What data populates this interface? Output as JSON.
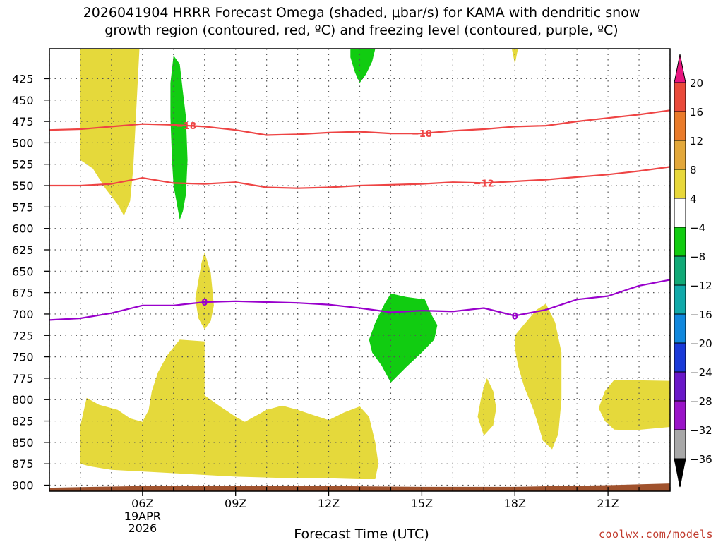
{
  "chart_data": {
    "type": "cross-section",
    "title_lines": [
      "2026041904 HRRR Forecast Omega (shaded, μbar/s) for KAMA with dendritic snow",
      "growth region (contoured, red, ºC) and freezing level (contoured, purple, ºC)"
    ],
    "xlabel": "Forecast Time (UTC)",
    "x_range_hours": [
      3.0,
      23.0
    ],
    "x_ticks": [
      {
        "hour": 6,
        "label": "06Z",
        "sub": [
          "19APR",
          "2026"
        ]
      },
      {
        "hour": 9,
        "label": "09Z"
      },
      {
        "hour": 12,
        "label": "12Z"
      },
      {
        "hour": 15,
        "label": "15Z"
      },
      {
        "hour": 18,
        "label": "18Z"
      },
      {
        "hour": 21,
        "label": "21Z"
      }
    ],
    "y_range_hpa": [
      907,
      390
    ],
    "y_ticks": [
      425,
      450,
      475,
      500,
      525,
      550,
      575,
      600,
      625,
      650,
      675,
      700,
      725,
      750,
      775,
      800,
      825,
      850,
      875,
      900
    ],
    "grid": "dotted",
    "colorbar": {
      "labels": [
        "20",
        "16",
        "12",
        "8",
        "4",
        "−4",
        "−8",
        "−12",
        "−16",
        "−20",
        "−24",
        "−28",
        "−32",
        "−36"
      ],
      "colors": [
        "#e8157f",
        "#ea4a3a",
        "#ea7b2a",
        "#e3a83a",
        "#e8d83a",
        "#ffffff",
        "#11cc11",
        "#11aa77",
        "#11aaaa",
        "#1188dd",
        "#1a3ad8",
        "#6a18c8",
        "#9a14c8",
        "#a8a8a8",
        "#000000"
      ]
    },
    "contours": [
      {
        "label": "−18",
        "color": "#ee4444",
        "label_positions": [
          7.4,
          15.0
        ],
        "points": [
          [
            3.0,
            485
          ],
          [
            4.0,
            484
          ],
          [
            5.0,
            481
          ],
          [
            6.0,
            478
          ],
          [
            7.0,
            479
          ],
          [
            8.0,
            481
          ],
          [
            9.0,
            485
          ],
          [
            10.0,
            491
          ],
          [
            11.0,
            490
          ],
          [
            12.0,
            488
          ],
          [
            13.0,
            487
          ],
          [
            14.0,
            489
          ],
          [
            15.0,
            489
          ],
          [
            16.0,
            486
          ],
          [
            17.0,
            484
          ],
          [
            18.0,
            481
          ],
          [
            19.0,
            480
          ],
          [
            20.0,
            475
          ],
          [
            21.0,
            471
          ],
          [
            22.0,
            467
          ],
          [
            23.0,
            462
          ]
        ]
      },
      {
        "label": "−12",
        "color": "#ee4444",
        "label_positions": [
          17.0
        ],
        "points": [
          [
            3.0,
            550
          ],
          [
            4.0,
            550
          ],
          [
            5.0,
            548
          ],
          [
            6.0,
            541
          ],
          [
            7.0,
            547
          ],
          [
            8.0,
            548
          ],
          [
            9.0,
            546
          ],
          [
            10.0,
            552
          ],
          [
            11.0,
            553
          ],
          [
            12.0,
            552
          ],
          [
            13.0,
            550
          ],
          [
            14.0,
            549
          ],
          [
            15.0,
            548
          ],
          [
            16.0,
            546
          ],
          [
            17.0,
            547
          ],
          [
            18.0,
            545
          ],
          [
            19.0,
            543
          ],
          [
            20.0,
            540
          ],
          [
            21.0,
            537
          ],
          [
            22.0,
            533
          ],
          [
            23.0,
            528
          ]
        ]
      },
      {
        "label": "0",
        "color": "#9900cc",
        "label_positions": [
          8.0,
          18.0
        ],
        "points": [
          [
            3.0,
            707
          ],
          [
            4.0,
            705
          ],
          [
            5.0,
            699
          ],
          [
            6.0,
            690
          ],
          [
            7.0,
            690
          ],
          [
            8.0,
            686
          ],
          [
            9.0,
            685
          ],
          [
            10.0,
            686
          ],
          [
            11.0,
            687
          ],
          [
            12.0,
            689
          ],
          [
            13.0,
            693
          ],
          [
            14.0,
            698
          ],
          [
            15.0,
            696
          ],
          [
            16.0,
            697
          ],
          [
            17.0,
            693
          ],
          [
            18.0,
            702
          ],
          [
            19.0,
            695
          ],
          [
            20.0,
            683
          ],
          [
            21.0,
            679
          ],
          [
            22.0,
            667
          ],
          [
            23.0,
            660
          ]
        ]
      }
    ],
    "shaded_regions": [
      {
        "value": "4 to 8",
        "color": "#e5d93b",
        "points": [
          [
            4.0,
            390
          ],
          [
            4.0,
            520
          ],
          [
            4.4,
            530
          ],
          [
            4.8,
            553
          ],
          [
            5.2,
            572
          ],
          [
            5.4,
            585
          ],
          [
            5.6,
            568
          ],
          [
            5.7,
            530
          ],
          [
            5.8,
            460
          ],
          [
            5.9,
            390
          ]
        ]
      },
      {
        "value": "4 to 8",
        "color": "#e5d93b",
        "points": [
          [
            7.7,
            682
          ],
          [
            7.9,
            640
          ],
          [
            8.0,
            628
          ],
          [
            8.2,
            652
          ],
          [
            8.3,
            690
          ],
          [
            8.2,
            708
          ],
          [
            8.0,
            718
          ],
          [
            7.8,
            705
          ]
        ]
      },
      {
        "value": "4 to 8",
        "color": "#e5d93b",
        "points": [
          [
            4.0,
            875
          ],
          [
            4.0,
            830
          ],
          [
            4.2,
            798
          ],
          [
            4.6,
            806
          ],
          [
            5.2,
            812
          ],
          [
            5.6,
            822
          ],
          [
            6.0,
            826
          ],
          [
            6.2,
            812
          ],
          [
            6.3,
            790
          ],
          [
            6.5,
            768
          ],
          [
            6.8,
            748
          ],
          [
            7.2,
            730
          ],
          [
            8.0,
            732
          ],
          [
            8.0,
            795
          ],
          [
            8.5,
            808
          ],
          [
            9.0,
            820
          ],
          [
            9.3,
            826
          ],
          [
            10.0,
            812
          ],
          [
            10.5,
            807
          ],
          [
            11.0,
            812
          ],
          [
            11.5,
            818
          ],
          [
            12.0,
            824
          ],
          [
            12.5,
            815
          ],
          [
            13.0,
            808
          ],
          [
            13.3,
            820
          ],
          [
            13.5,
            850
          ],
          [
            13.6,
            875
          ],
          [
            13.5,
            893
          ],
          [
            13.0,
            893
          ],
          [
            12.0,
            892
          ],
          [
            11.0,
            892
          ],
          [
            10.0,
            891
          ],
          [
            9.0,
            890
          ],
          [
            8.0,
            888
          ],
          [
            7.0,
            886
          ],
          [
            6.0,
            884
          ],
          [
            5.0,
            882
          ],
          [
            4.3,
            878
          ]
        ]
      },
      {
        "value": "4 to 8",
        "color": "#e5d93b",
        "points": [
          [
            18.0,
            725
          ],
          [
            18.3,
            712
          ],
          [
            18.7,
            695
          ],
          [
            19.0,
            688
          ],
          [
            19.3,
            710
          ],
          [
            19.5,
            745
          ],
          [
            19.5,
            800
          ],
          [
            19.4,
            840
          ],
          [
            19.2,
            858
          ],
          [
            18.9,
            848
          ],
          [
            18.8,
            835
          ],
          [
            18.6,
            812
          ],
          [
            18.3,
            785
          ],
          [
            18.1,
            760
          ],
          [
            18.0,
            740
          ]
        ]
      },
      {
        "value": "4 to 8",
        "color": "#e5d93b",
        "points": [
          [
            16.9,
            800
          ],
          [
            17.0,
            785
          ],
          [
            17.1,
            775
          ],
          [
            17.3,
            790
          ],
          [
            17.4,
            810
          ],
          [
            17.3,
            830
          ],
          [
            17.0,
            842
          ],
          [
            16.8,
            820
          ]
        ]
      },
      {
        "value": "4 to 8",
        "color": "#e5d93b",
        "points": [
          [
            20.7,
            810
          ],
          [
            20.9,
            790
          ],
          [
            21.2,
            777
          ],
          [
            23.0,
            778
          ],
          [
            23.0,
            832
          ],
          [
            21.8,
            836
          ],
          [
            21.2,
            835
          ],
          [
            20.9,
            825
          ]
        ]
      },
      {
        "value": "4 to 8",
        "color": "#e5d93b",
        "points": [
          [
            17.9,
            390
          ],
          [
            18.1,
            390
          ],
          [
            18.0,
            408
          ]
        ]
      },
      {
        "value": "-4 to -8",
        "color": "#11cc11",
        "points": [
          [
            7.0,
            398
          ],
          [
            7.2,
            408
          ],
          [
            7.3,
            440
          ],
          [
            7.4,
            470
          ],
          [
            7.45,
            520
          ],
          [
            7.4,
            560
          ],
          [
            7.3,
            580
          ],
          [
            7.2,
            590
          ],
          [
            7.1,
            570
          ],
          [
            7.0,
            550
          ],
          [
            6.95,
            520
          ],
          [
            6.9,
            470
          ],
          [
            6.9,
            430
          ]
        ]
      },
      {
        "value": "-4 to -8",
        "color": "#11cc11",
        "points": [
          [
            12.7,
            390
          ],
          [
            13.5,
            390
          ],
          [
            13.4,
            405
          ],
          [
            13.2,
            420
          ],
          [
            13.0,
            430
          ],
          [
            12.85,
            418
          ],
          [
            12.7,
            400
          ]
        ]
      },
      {
        "value": "-4 to -8",
        "color": "#11cc11",
        "points": [
          [
            13.3,
            730
          ],
          [
            13.5,
            710
          ],
          [
            13.8,
            688
          ],
          [
            14.0,
            676
          ],
          [
            14.5,
            680
          ],
          [
            15.1,
            683
          ],
          [
            15.3,
            700
          ],
          [
            15.5,
            713
          ],
          [
            15.4,
            730
          ],
          [
            15.0,
            745
          ],
          [
            14.5,
            762
          ],
          [
            14.0,
            780
          ],
          [
            13.7,
            760
          ],
          [
            13.4,
            745
          ]
        ]
      }
    ],
    "terrain_color": "#a0522d",
    "terrain": [
      [
        3.0,
        903
      ],
      [
        6.0,
        901
      ],
      [
        12.0,
        901
      ],
      [
        15.0,
        902
      ],
      [
        18.0,
        902
      ],
      [
        21.0,
        900
      ],
      [
        23.0,
        898
      ]
    ]
  },
  "footer": {
    "x_title": "Forecast Time (UTC)",
    "credit": "coolwx.com/models"
  }
}
